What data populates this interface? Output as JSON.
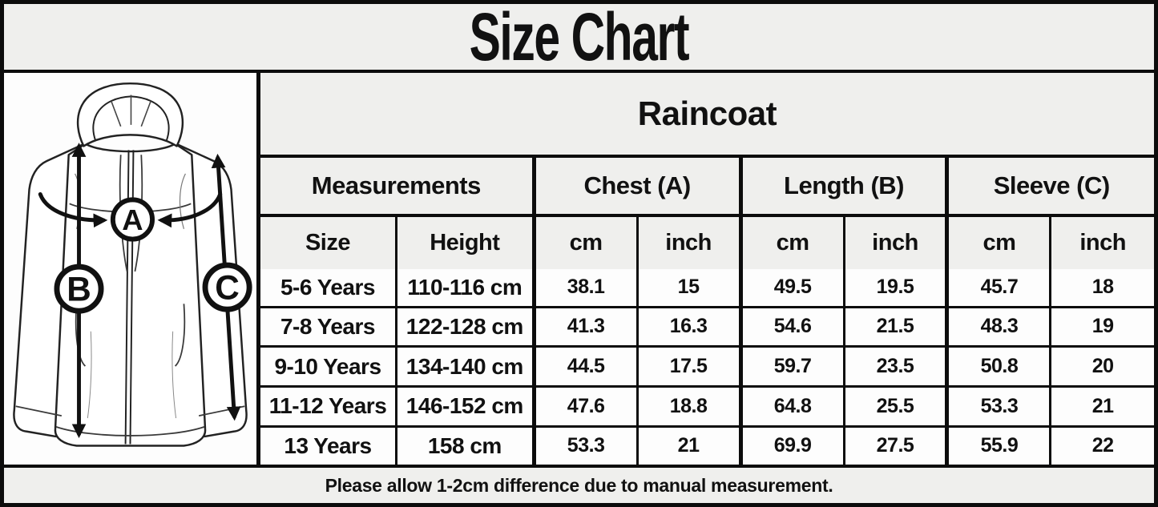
{
  "title": "Size Chart",
  "diagram": {
    "label_a": "A",
    "label_b": "B",
    "label_c": "C"
  },
  "chart_data": {
    "type": "table",
    "title": "Raincoat",
    "group_headers": {
      "measurements": "Measurements",
      "chest": "Chest (A)",
      "length": "Length (B)",
      "sleeve": "Sleeve (C)"
    },
    "columns": [
      "Size",
      "Height",
      "cm",
      "inch",
      "cm",
      "inch",
      "cm",
      "inch"
    ],
    "rows": [
      [
        "5-6 Years",
        "110-116 cm",
        "38.1",
        "15",
        "49.5",
        "19.5",
        "45.7",
        "18"
      ],
      [
        "7-8 Years",
        "122-128 cm",
        "41.3",
        "16.3",
        "54.6",
        "21.5",
        "48.3",
        "19"
      ],
      [
        "9-10 Years",
        "134-140 cm",
        "44.5",
        "17.5",
        "59.7",
        "23.5",
        "50.8",
        "20"
      ],
      [
        "11-12 Years",
        "146-152 cm",
        "47.6",
        "18.8",
        "64.8",
        "25.5",
        "53.3",
        "21"
      ],
      [
        "13 Years",
        "158 cm",
        "53.3",
        "21",
        "69.9",
        "27.5",
        "55.9",
        "22"
      ]
    ]
  },
  "footer": {
    "note": "Please allow 1-2cm difference due to manual measurement."
  },
  "colors": {
    "background_gray": "#efefed",
    "cell_white": "#fdfdfd",
    "border_black": "#0c0c0c",
    "text": "#111111"
  }
}
